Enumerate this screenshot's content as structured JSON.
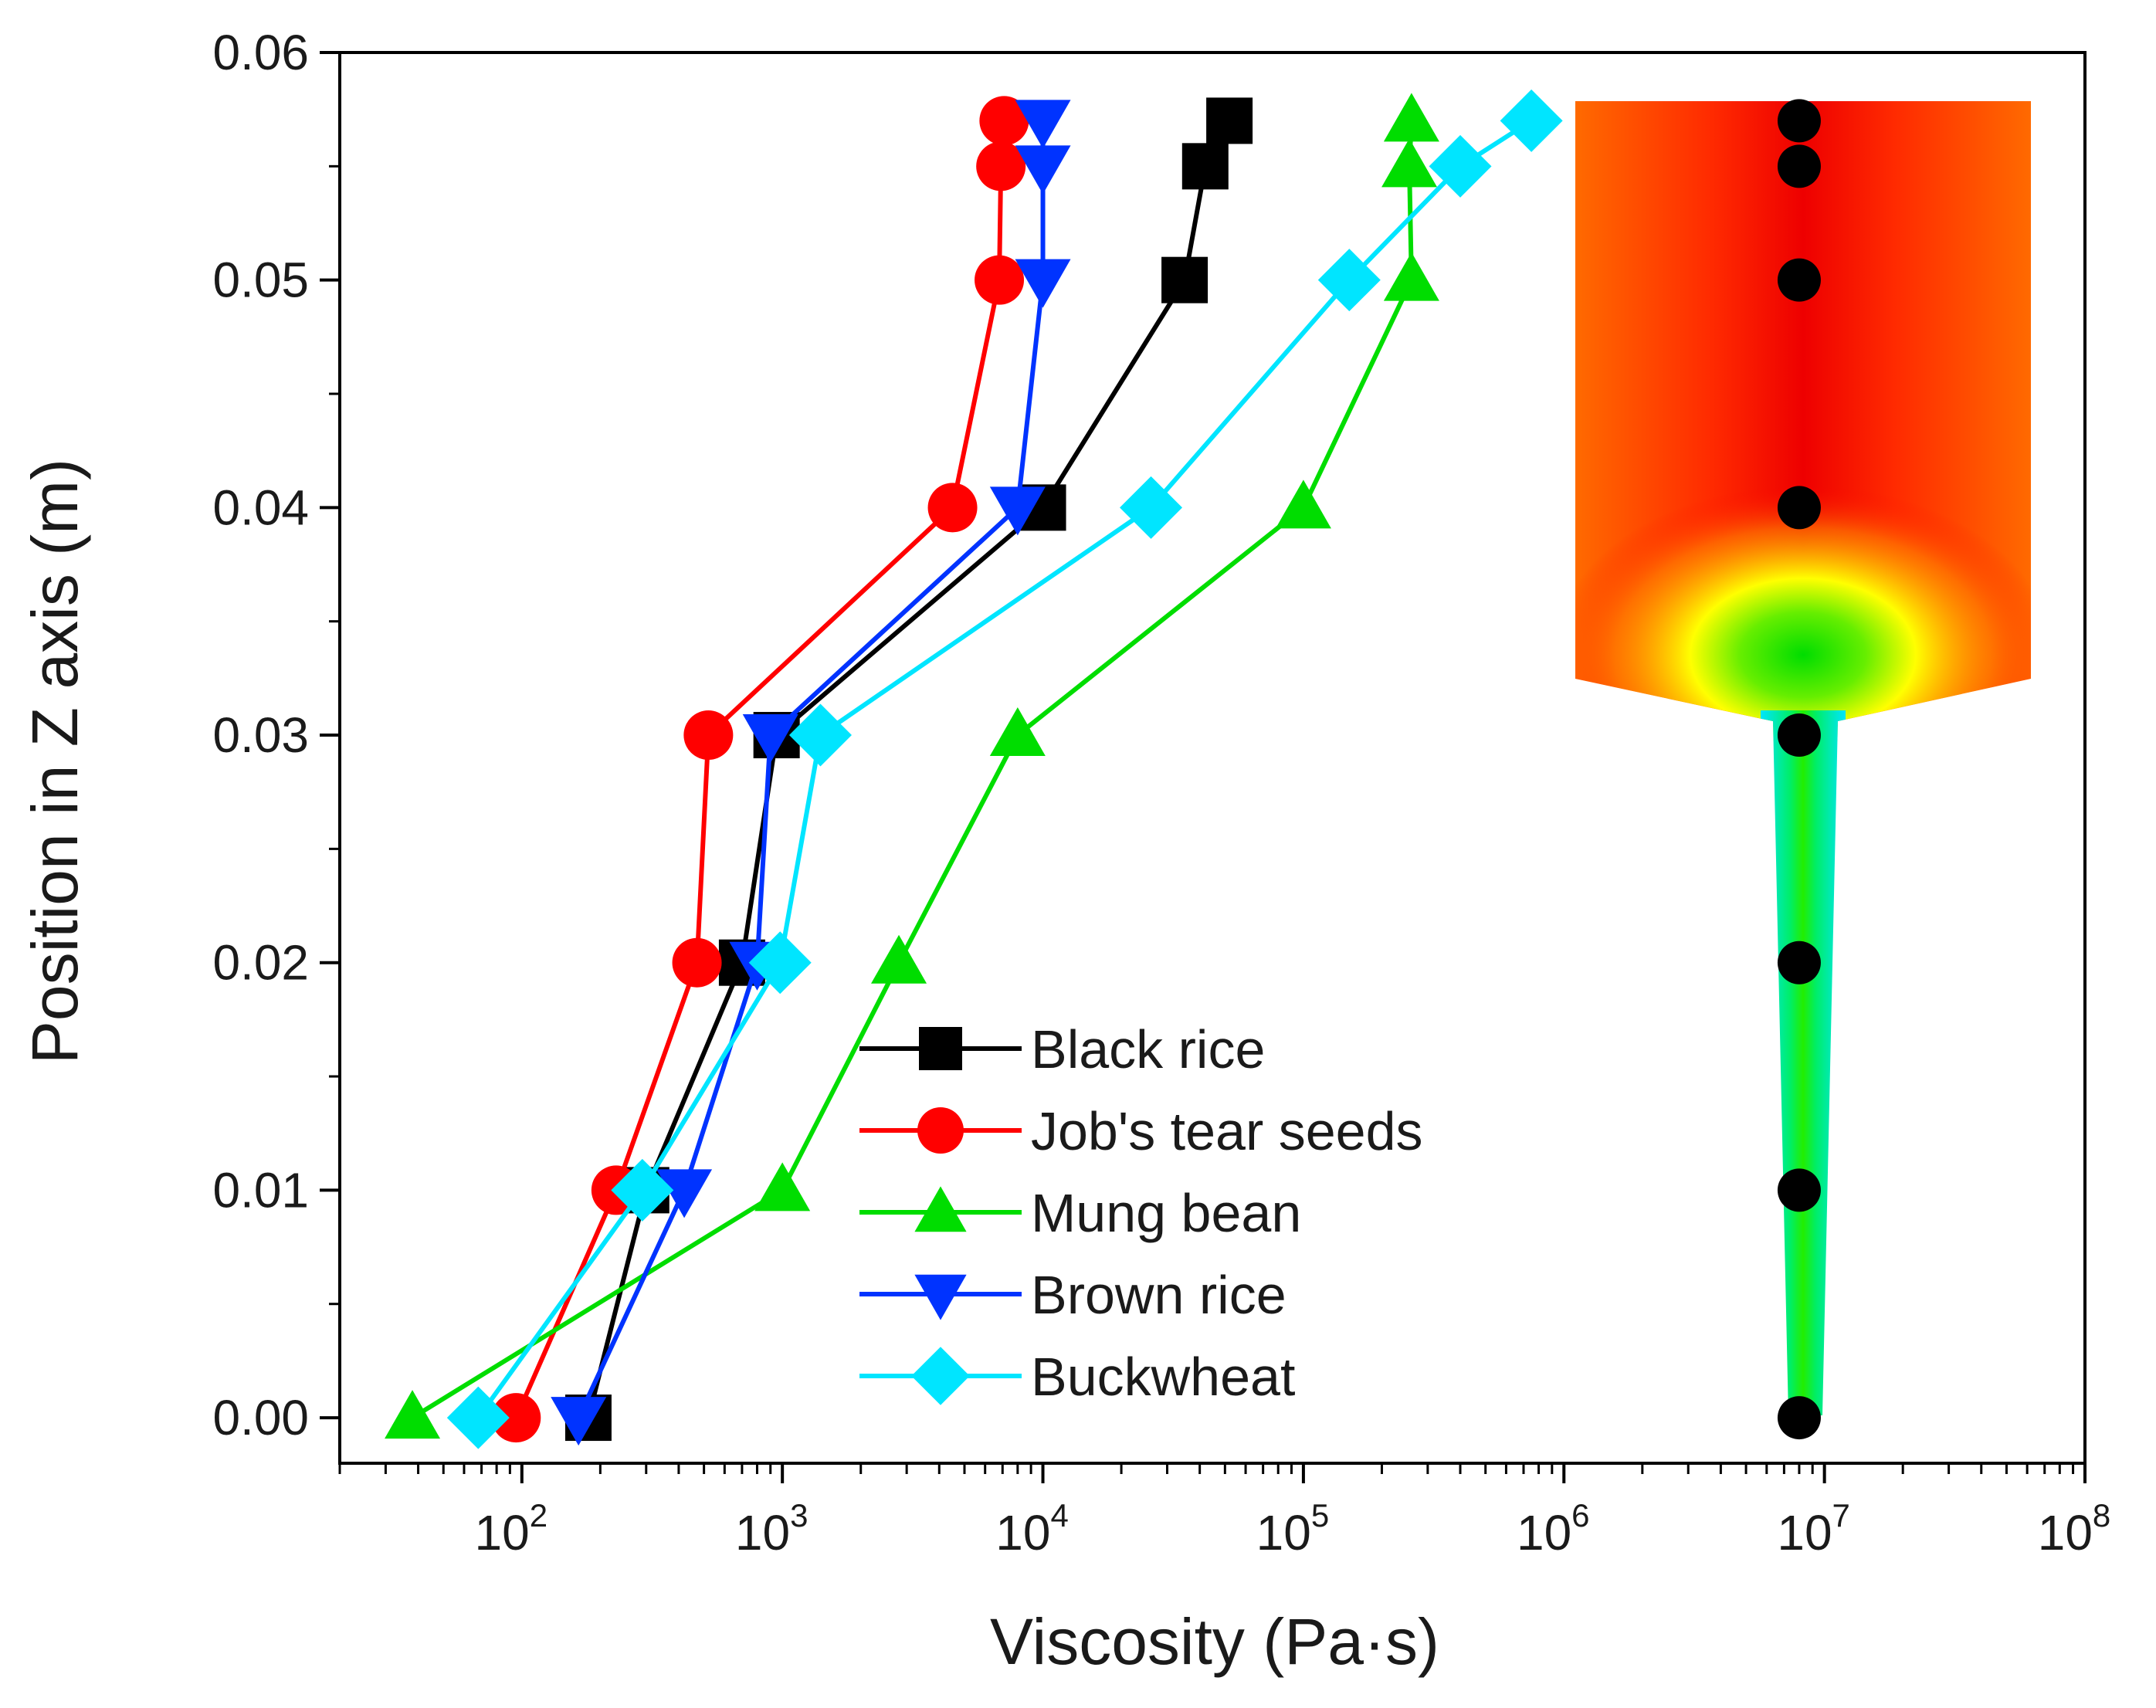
{
  "chart_data": {
    "type": "line",
    "title": "",
    "xlabel": "Viscosity (Pa·s)",
    "ylabel": "Position in Z axis (m)",
    "xscale": "log",
    "xlim": [
      20,
      100000000
    ],
    "ylim": [
      -0.002,
      0.06
    ],
    "x_ticks": [
      {
        "base": "10",
        "exp": "2"
      },
      {
        "base": "10",
        "exp": "3"
      },
      {
        "base": "10",
        "exp": "4"
      },
      {
        "base": "10",
        "exp": "5"
      },
      {
        "base": "10",
        "exp": "6"
      },
      {
        "base": "10",
        "exp": "7"
      },
      {
        "base": "10",
        "exp": "8"
      }
    ],
    "y_ticks": [
      "0.00",
      "0.01",
      "0.02",
      "0.03",
      "0.04",
      "0.05",
      "0.06"
    ],
    "y_tick_values": [
      0,
      0.01,
      0.02,
      0.03,
      0.04,
      0.05,
      0.06
    ],
    "legend_position": "bottom-center",
    "y": [
      0,
      0.01,
      0.02,
      0.03,
      0.04,
      0.05,
      0.055,
      0.057
    ],
    "series": [
      {
        "name": "Black rice",
        "color": "#000000",
        "marker": "square",
        "x": [
          180,
          300,
          700,
          950,
          10000,
          35000,
          42000,
          52000
        ]
      },
      {
        "name": "Job's tear seeds",
        "color": "#ff0000",
        "marker": "circle",
        "x": [
          95,
          230,
          470,
          520,
          4500,
          6800,
          6900,
          7100
        ]
      },
      {
        "name": "Mung bean",
        "color": "#00dd00",
        "marker": "triangle-up",
        "x": [
          38,
          1000,
          2800,
          8000,
          100000,
          260000,
          255000,
          260000
        ]
      },
      {
        "name": "Brown rice",
        "color": "#0033ff",
        "marker": "triangle-down",
        "x": [
          165,
          420,
          800,
          900,
          8000,
          10000,
          10000,
          10000
        ]
      },
      {
        "name": "Buckwheat",
        "color": "#00e5ff",
        "marker": "diamond",
        "x": [
          68,
          290,
          980,
          1400,
          26000,
          150000,
          400000,
          750000
        ]
      }
    ],
    "inset": {
      "description_colors": [
        "#ff0000",
        "#ff6a00",
        "#ffff00",
        "#00dd00",
        "#00e5ff"
      ],
      "probe_x": 8000000,
      "probe_y": [
        0,
        0.01,
        0.02,
        0.03,
        0.04,
        0.05,
        0.055,
        0.057
      ]
    }
  }
}
